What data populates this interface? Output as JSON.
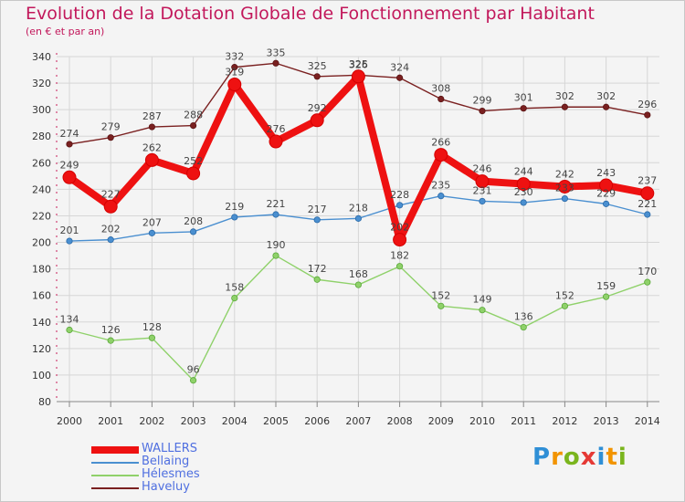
{
  "title": "Evolution de la Dotation Globale de Fonctionnement par Habitant",
  "subtitle": "(en € et par an)",
  "logo": {
    "letters": [
      "P",
      "r",
      "o",
      "x",
      "i",
      "t",
      "i"
    ],
    "colors": [
      "#2f8fd6",
      "#f29400",
      "#7ab51d",
      "#e53935",
      "#2f8fd6",
      "#f29400",
      "#7ab51d"
    ]
  },
  "chart_data": {
    "type": "line",
    "title": "Evolution de la Dotation Globale de Fonctionnement par Habitant",
    "subtitle": "(en € et par an)",
    "x": [
      "2000",
      "2001",
      "2002",
      "2003",
      "2004",
      "2005",
      "2006",
      "2007",
      "2008",
      "2009",
      "2010",
      "2011",
      "2012",
      "2013",
      "2014"
    ],
    "ylim": [
      80,
      340
    ],
    "yticks": [
      80,
      100,
      120,
      140,
      160,
      180,
      200,
      220,
      240,
      260,
      280,
      300,
      320,
      340
    ],
    "grid": true,
    "legend_position": "bottom-left",
    "series": [
      {
        "name": "Haveluy",
        "color": "#7a2020",
        "values": [
          274,
          279,
          287,
          288,
          332,
          335,
          325,
          326,
          324,
          308,
          299,
          301,
          302,
          302,
          296
        ]
      },
      {
        "name": "Hélesmes",
        "color": "#8fd16a",
        "values": [
          134,
          126,
          128,
          96,
          158,
          190,
          172,
          168,
          182,
          152,
          149,
          136,
          152,
          159,
          170
        ]
      },
      {
        "name": "Bellaing",
        "color": "#4a8fd0",
        "values": [
          201,
          202,
          207,
          208,
          219,
          221,
          217,
          218,
          228,
          235,
          231,
          230,
          233,
          229,
          221
        ]
      },
      {
        "name": "WALLERS",
        "color": "#ee1111",
        "values": [
          249,
          227,
          262,
          252,
          319,
          276,
          292,
          325,
          202,
          266,
          246,
          244,
          242,
          243,
          237
        ]
      }
    ]
  }
}
